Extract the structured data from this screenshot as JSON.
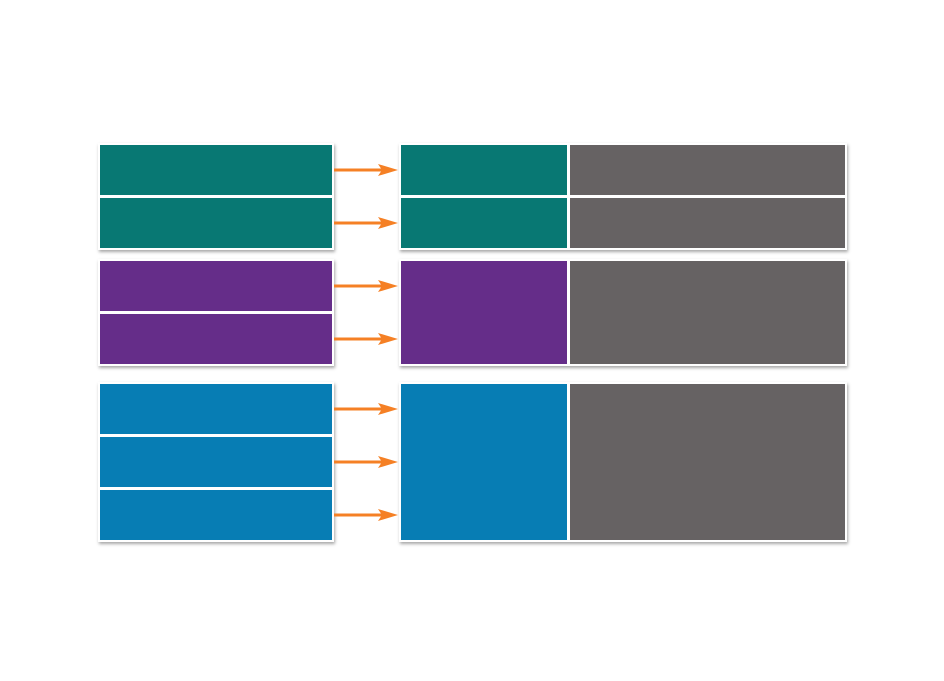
{
  "colors": {
    "teal": "#087873",
    "purple": "#652d89",
    "blue": "#077db4",
    "gray": "#666263",
    "arrow": "#f58025"
  },
  "groups": [
    {
      "color_key": "teal",
      "rows": 2,
      "merged_right": false
    },
    {
      "color_key": "purple",
      "rows": 2,
      "merged_right": true
    },
    {
      "color_key": "blue",
      "rows": 3,
      "merged_right": true
    }
  ]
}
